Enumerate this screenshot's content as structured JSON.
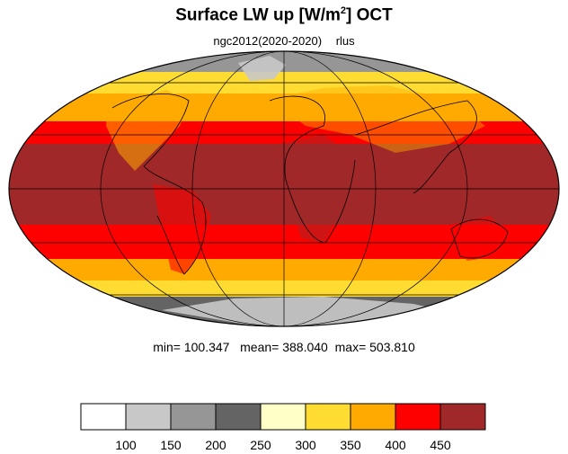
{
  "title_main": "Surface LW up [W/m",
  "title_sup": "2",
  "title_tail": "]  OCT",
  "subtitle_left": "ngc2012(2020-2020)",
  "subtitle_right": "rlus",
  "stats": {
    "min_label": "min=",
    "min": "100.347",
    "mean_label": "mean=",
    "mean": "388.040",
    "max_label": "max=",
    "max": "503.810"
  },
  "colorbar": {
    "colors": [
      "#ffffff",
      "#c8c8c8",
      "#969696",
      "#646464",
      "#ffffc8",
      "#ffdc32",
      "#ffaa00",
      "#ff0000",
      "#a02828"
    ],
    "tick_labels": [
      "100",
      "150",
      "200",
      "250",
      "300",
      "350",
      "400",
      "450"
    ]
  },
  "zones": [
    {
      "name": "arctic",
      "color": "#969696"
    },
    {
      "name": "north-cold",
      "color": "#ffdc32"
    },
    {
      "name": "north-mid",
      "color": "#ffaa00"
    },
    {
      "name": "warm",
      "color": "#ff0000"
    },
    {
      "name": "tropics",
      "color": "#a02828"
    },
    {
      "name": "south-mid",
      "color": "#ffaa00"
    },
    {
      "name": "south-cold",
      "color": "#ffdc32"
    },
    {
      "name": "antarctic",
      "color": "#646464"
    }
  ]
}
